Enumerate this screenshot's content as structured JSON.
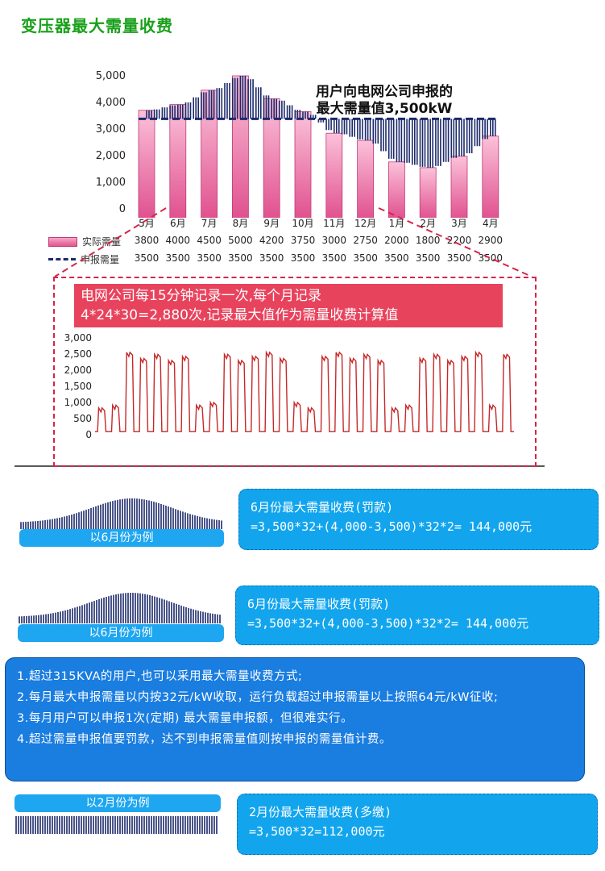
{
  "title": "变压器最大需量收费",
  "callout": [
    "用户向电网公司申报的",
    "最大需量值3,500kW"
  ],
  "bar_chart": {
    "y_ticks": [
      "5,000",
      "4,000",
      "3,000",
      "2,000",
      "1,000",
      "0"
    ],
    "legend": [
      "实际需量",
      "申报需量"
    ],
    "months": [
      "5月",
      "6月",
      "7月",
      "8月",
      "9月",
      "10月",
      "11月",
      "12月",
      "1月",
      "2月",
      "3月",
      "4月"
    ],
    "actual": [
      "3800",
      "4000",
      "4500",
      "5000",
      "4200",
      "3750",
      "3000",
      "2750",
      "2000",
      "1800",
      "2200",
      "2900"
    ],
    "declared": [
      "3500",
      "3500",
      "3500",
      "3500",
      "3500",
      "3500",
      "3500",
      "3500",
      "3500",
      "3500",
      "3500",
      "3500"
    ]
  },
  "chart_data": {
    "type": "bar",
    "categories": [
      "5月",
      "6月",
      "7月",
      "8月",
      "9月",
      "10月",
      "11月",
      "12月",
      "1月",
      "2月",
      "3月",
      "4月"
    ],
    "series": [
      {
        "name": "实际需量",
        "values": [
          3800,
          4000,
          4500,
          5000,
          4200,
          3750,
          3000,
          2750,
          2000,
          1800,
          2200,
          2900
        ]
      },
      {
        "name": "申报需量",
        "values": [
          3500,
          3500,
          3500,
          3500,
          3500,
          3500,
          3500,
          3500,
          3500,
          3500,
          3500,
          3500
        ]
      }
    ],
    "ylim": [
      0,
      5000
    ],
    "legend": "bottom-left",
    "colors": {
      "actual": "#e8508f",
      "declared": "#1c2a6b"
    }
  },
  "zoom_note": [
    "电网公司每15分钟记录一次,每个月记录",
    "4*24*30=2,880次,记录最大值作为需量收费计算值"
  ],
  "line_chart": {
    "y_ticks": [
      "3,000",
      "2,500",
      "2,000",
      "1,500",
      "1,000",
      "500",
      "0"
    ],
    "ylim": [
      0,
      3000
    ],
    "color": "#c62828"
  },
  "card1": {
    "title": "6月份最大需量收费(罚款)",
    "formula": "=3,500*32+(4,000-3,500)*32*2= 144,000元",
    "label": "以6月份为例"
  },
  "card2": {
    "title": "6月份最大需量收费(罚款)",
    "formula": "=3,500*32+(4,000-3,500)*32*2= 144,000元",
    "label": "以6月份为例"
  },
  "rules": [
    "1.超过315KVA的用户,也可以采用最大需量收费方式;",
    "2.每月最大申报需量以内按32元/kW收取，运行负载超过申报需量以上按照64元/kW征收;",
    "3.每月用户可以申报1次(定期) 最大需量申报额，但很难实行。",
    "4.超过需量申报值要罚款，达不到申报需量值则按申报的需量值计费。"
  ],
  "card3": {
    "title": "2月份最大需量收费(多缴)",
    "formula": "=3,500*32=112,000元",
    "label": "以2月份为例"
  }
}
